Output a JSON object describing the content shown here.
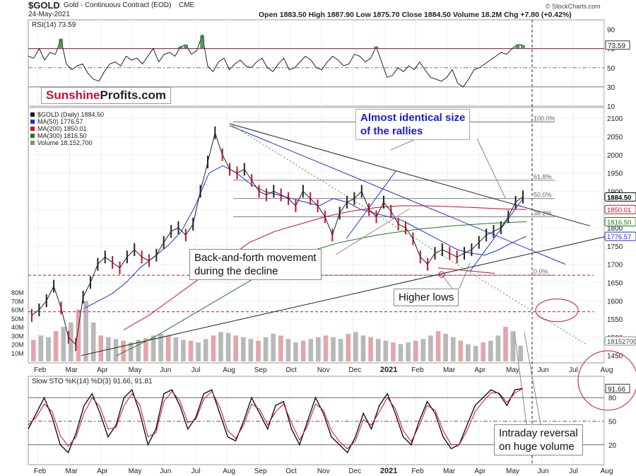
{
  "header": {
    "symbol": "$GOLD",
    "name": "Gold - Continuous Contract (EOD)",
    "exchange": "CME",
    "date": "24-May-2021",
    "quote": "Open 1883.50  High 1887.90  Low 1875.70  Close 1884.50  Volume 18.2M  Chg +7.80 (+0.42%)",
    "copyright": "© StockCharts.com"
  },
  "brand": {
    "part1": "Sunshine",
    "part2": "Profits.com",
    "color1": "#c8102e"
  },
  "annotations": {
    "rallies": [
      "Almost identical size",
      "of the rallies"
    ],
    "back_forth": [
      "Back-and-forth movement",
      "during the decline"
    ],
    "higher_lows": "Higher lows",
    "reversal": [
      "Intraday reversal",
      "on huge volume"
    ]
  },
  "chart_data": [
    {
      "type": "line",
      "title": "RSI(14) 73.59",
      "ylim": [
        10,
        100
      ],
      "ytick_labels": [
        "90",
        "70",
        "50",
        "30",
        "10"
      ],
      "reference_lines": [
        70,
        50,
        30
      ],
      "last_value_label": "73.59",
      "series": [
        {
          "name": "RSI(14)",
          "values": [
            62,
            60,
            70,
            58,
            66,
            64,
            80,
            54,
            48,
            52,
            54,
            44,
            38,
            36,
            46,
            54,
            56,
            52,
            62,
            58,
            60,
            54,
            62,
            70,
            56,
            64,
            66,
            62,
            72,
            74,
            64,
            68,
            84,
            52,
            46,
            56,
            60,
            48,
            54,
            58,
            52,
            50,
            56,
            60,
            50,
            46,
            54,
            60,
            48,
            50,
            56,
            62,
            58,
            50,
            48,
            56,
            62,
            58,
            52,
            54,
            64,
            62,
            56,
            60,
            72,
            56,
            40,
            42,
            50,
            46,
            52,
            48,
            56,
            48,
            40,
            38,
            36,
            40,
            48,
            34,
            30,
            38,
            48,
            50,
            54,
            58,
            62,
            66,
            64,
            70,
            74,
            73.59
          ]
        }
      ]
    },
    {
      "type": "line",
      "title": "$GOLD (Daily) 1884.50",
      "ylim": [
        1430,
        2110
      ],
      "ytick_labels": [
        "2100",
        "2050",
        "2000",
        "1950",
        "1900",
        "1850",
        "1800",
        "1750",
        "1700",
        "1650",
        "1600",
        "1550",
        "1500",
        "1450"
      ],
      "x_tick_labels": [
        "Feb",
        "Mar",
        "Apr",
        "May",
        "Jun",
        "Jul",
        "Aug",
        "Sep",
        "Oct",
        "Nov",
        "Dec",
        "2021",
        "Feb",
        "Mar",
        "Apr",
        "May",
        "Jun",
        "Jul",
        "Aug"
      ],
      "legend": [
        {
          "label": "$GOLD (Daily) 1884.50",
          "color": "#111111"
        },
        {
          "label": "MA(50) 1776.57",
          "color": "#2233cc"
        },
        {
          "label": "MA(200) 1850.01",
          "color": "#c8102e"
        },
        {
          "label": "MA(300) 1816.50",
          "color": "#1e7a1e"
        },
        {
          "label": "Volume 18,152,700",
          "color": "#888888"
        }
      ],
      "price_tags": [
        {
          "label": "1884.50",
          "value": 1884.5,
          "style": "dark"
        },
        {
          "label": "1850.01",
          "value": 1850.01,
          "style": "red"
        },
        {
          "label": "1816.50",
          "value": 1816.5,
          "style": "green"
        },
        {
          "label": "1776.57",
          "value": 1776.57,
          "style": "blue"
        },
        {
          "label": "18152700",
          "value": 1490,
          "style": "gray"
        }
      ],
      "fib_levels": [
        {
          "label": "100.0%",
          "value": 2090
        },
        {
          "label": "61.8%",
          "value": 1930
        },
        {
          "label": "50.0%",
          "value": 1880
        },
        {
          "label": "38.2%",
          "value": 1830
        },
        {
          "label": "0.0%",
          "value": 1670
        }
      ],
      "series": [
        {
          "name": "$GOLD",
          "values": [
            1560,
            1575,
            1600,
            1640,
            1580,
            1500,
            1480,
            1610,
            1650,
            1700,
            1720,
            1705,
            1690,
            1720,
            1740,
            1720,
            1710,
            1725,
            1760,
            1790,
            1800,
            1780,
            1810,
            1900,
            1980,
            2060,
            2000,
            1960,
            1950,
            1960,
            1930,
            1900,
            1890,
            1900,
            1890,
            1880,
            1860,
            1900,
            1880,
            1860,
            1830,
            1780,
            1840,
            1870,
            1880,
            1900,
            1850,
            1830,
            1870,
            1845,
            1810,
            1800,
            1770,
            1720,
            1700,
            1730,
            1740,
            1730,
            1720,
            1730,
            1740,
            1760,
            1780,
            1790,
            1800,
            1830,
            1870,
            1884.5
          ]
        },
        {
          "name": "MA(50)",
          "values": [
            1580,
            1600,
            1620,
            1650,
            1690,
            1720,
            1750,
            1790,
            1860,
            1950,
            1970,
            1950,
            1920,
            1900,
            1890,
            1880,
            1870,
            1860,
            1880,
            1870,
            1850,
            1840,
            1830,
            1820,
            1800,
            1780,
            1760,
            1740,
            1730,
            1725,
            1740,
            1760,
            1776.57
          ]
        },
        {
          "name": "MA(200)",
          "values": [
            1520,
            1560,
            1610,
            1660,
            1710,
            1760,
            1790,
            1810,
            1830,
            1845,
            1855,
            1860,
            1860,
            1858,
            1855,
            1852,
            1850.01
          ]
        },
        {
          "name": "MA(300)",
          "values": [
            1450,
            1500,
            1560,
            1620,
            1680,
            1730,
            1760,
            1780,
            1795,
            1805,
            1812,
            1816.5
          ]
        }
      ],
      "volume": {
        "name": "Volume",
        "ytick_labels": [
          "80M",
          "70M",
          "60M",
          "50M",
          "40M",
          "30M",
          "20M",
          "10M"
        ],
        "ylim": [
          0,
          90
        ],
        "values": [
          25,
          30,
          28,
          35,
          40,
          45,
          60,
          70,
          45,
          30,
          28,
          26,
          24,
          22,
          25,
          27,
          30,
          32,
          30,
          28,
          25,
          24,
          22,
          26,
          30,
          34,
          33,
          30,
          28,
          26,
          24,
          28,
          32,
          30,
          26,
          22,
          24,
          26,
          28,
          30,
          28,
          26,
          32,
          34,
          30,
          28,
          26,
          24,
          22,
          20,
          22,
          24,
          26,
          30,
          35,
          32,
          28,
          24,
          20,
          18,
          22,
          24,
          30,
          40,
          35,
          18.2
        ]
      }
    },
    {
      "type": "line",
      "title": "Slow STO %K(14) %D(3) 91.66, 91.81",
      "ylim": [
        0,
        100
      ],
      "ytick_labels": [
        "91.66",
        "80",
        "50",
        "20"
      ],
      "reference_lines": [
        80,
        50,
        20
      ],
      "series": [
        {
          "name": "%K",
          "color": "#111111",
          "values": [
            40,
            60,
            80,
            55,
            20,
            10,
            35,
            70,
            85,
            60,
            30,
            45,
            80,
            90,
            60,
            20,
            40,
            85,
            90,
            70,
            40,
            55,
            85,
            90,
            60,
            30,
            25,
            50,
            80,
            60,
            40,
            70,
            75,
            40,
            20,
            50,
            80,
            60,
            30,
            20,
            10,
            30,
            60,
            40,
            70,
            85,
            60,
            30,
            20,
            50,
            75,
            60,
            30,
            15,
            20,
            45,
            70,
            80,
            90,
            85,
            70,
            90,
            91.66
          ]
        },
        {
          "name": "%D",
          "color": "#c8102e",
          "values": [
            45,
            55,
            72,
            62,
            32,
            18,
            30,
            60,
            80,
            68,
            40,
            42,
            70,
            85,
            70,
            30,
            35,
            75,
            88,
            76,
            48,
            52,
            78,
            88,
            68,
            38,
            28,
            45,
            72,
            65,
            45,
            62,
            72,
            48,
            26,
            44,
            72,
            64,
            38,
            24,
            15,
            25,
            52,
            45,
            62,
            80,
            66,
            38,
            24,
            44,
            70,
            64,
            38,
            20,
            20,
            38,
            62,
            75,
            86,
            86,
            74,
            86,
            91.81
          ]
        }
      ]
    }
  ]
}
